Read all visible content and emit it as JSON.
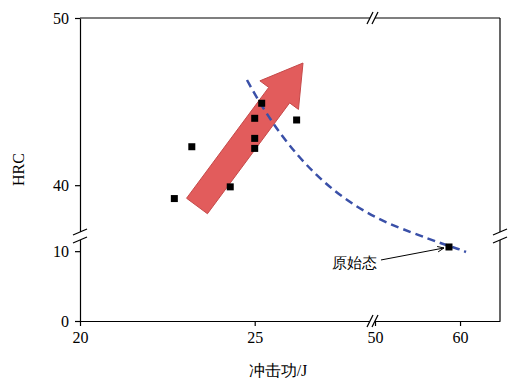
{
  "chart_data": {
    "type": "scatter",
    "x_label": "冲击功/J",
    "y_label": "HRC",
    "x": [
      22.7,
      23.2,
      24.3,
      25.0,
      25.0,
      25.0,
      25.2,
      26.2,
      58.7
    ],
    "values": [
      39.2,
      42.3,
      39.9,
      44.0,
      42.8,
      42.2,
      44.9,
      43.9,
      10.6
    ],
    "color": "#000000",
    "marker": "square",
    "xlim": [
      20,
      64.7
    ],
    "xbreak": [
      28.3,
      50
    ],
    "xticks": [
      20,
      25,
      50,
      60
    ],
    "ylim": [
      0,
      50
    ],
    "ybreak": [
      11.6,
      37.2
    ],
    "yticks": [
      0,
      10,
      40,
      50
    ],
    "annotation": "原始态"
  }
}
